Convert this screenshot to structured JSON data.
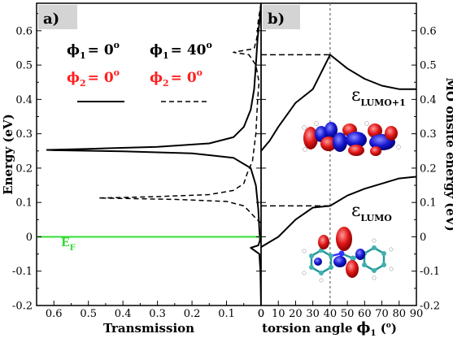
{
  "colors": {
    "black": "#000000",
    "red": "#ff2020",
    "fermi_line": "#33dd33",
    "panel_label_bg": "#d4d4d4",
    "dashed_vline": "#666666"
  },
  "chart_data": [
    {
      "type": "line",
      "panel_label": "a)",
      "xlabel": "Transmission",
      "ylabel": "Energy (eV)",
      "xlim": [
        0.65,
        0.0
      ],
      "ylim": [
        -0.2,
        0.68
      ],
      "x_ticks": [
        "0.6",
        "0.5",
        "0.4",
        "0.3",
        "0.2",
        "0.1",
        "0"
      ],
      "y_ticks": [
        "-0.2",
        "-0.1",
        "0",
        "0.1",
        "0.2",
        "0.3",
        "0.4",
        "0.5",
        "0.6"
      ],
      "fermi_label": "E",
      "fermi_sub": "F",
      "fermi_energy": 0.0,
      "legend": [
        {
          "line1": {
            "phi": "ϕ",
            "sub": "1",
            "eq": "= 0",
            "sup": "o"
          },
          "line2": {
            "phi": "ϕ",
            "sub": "2",
            "eq": "= 0",
            "sup": "o"
          },
          "style": "solid"
        },
        {
          "line1": {
            "phi": "ϕ",
            "sub": "1",
            "eq": "= 40",
            "sup": "o"
          },
          "line2": {
            "phi": "ϕ",
            "sub": "2",
            "eq": "= 0",
            "sup": "o"
          },
          "style": "dashed"
        }
      ],
      "series": [
        {
          "style": "solid",
          "points": [
            [
              0.0,
              -0.2
            ],
            [
              0.002,
              -0.1
            ],
            [
              0.005,
              -0.05
            ],
            [
              0.03,
              -0.032
            ],
            [
              0.008,
              -0.025
            ],
            [
              0.003,
              -0.01
            ],
            [
              0.005,
              0.02
            ],
            [
              0.008,
              0.08
            ],
            [
              0.015,
              0.15
            ],
            [
              0.03,
              0.2
            ],
            [
              0.08,
              0.23
            ],
            [
              0.2,
              0.243
            ],
            [
              0.4,
              0.249
            ],
            [
              0.6,
              0.252
            ],
            [
              0.62,
              0.253
            ],
            [
              0.5,
              0.256
            ],
            [
              0.3,
              0.262
            ],
            [
              0.15,
              0.272
            ],
            [
              0.08,
              0.29
            ],
            [
              0.05,
              0.32
            ],
            [
              0.03,
              0.37
            ],
            [
              0.02,
              0.43
            ],
            [
              0.015,
              0.5
            ],
            [
              0.01,
              0.58
            ],
            [
              0.004,
              0.63
            ],
            [
              0.0,
              0.68
            ]
          ]
        },
        {
          "style": "dashed",
          "points": [
            [
              0.0,
              0.04
            ],
            [
              0.012,
              0.05
            ],
            [
              0.03,
              0.07
            ],
            [
              0.05,
              0.09
            ],
            [
              0.1,
              0.103
            ],
            [
              0.25,
              0.109
            ],
            [
              0.47,
              0.113
            ],
            [
              0.3,
              0.117
            ],
            [
              0.15,
              0.123
            ],
            [
              0.08,
              0.135
            ],
            [
              0.05,
              0.155
            ],
            [
              0.04,
              0.185
            ],
            [
              0.025,
              0.22
            ],
            [
              0.015,
              0.3
            ],
            [
              0.01,
              0.4
            ],
            [
              0.006,
              0.45
            ],
            [
              0.015,
              0.5
            ],
            [
              0.035,
              0.53
            ],
            [
              0.08,
              0.537
            ],
            [
              0.02,
              0.548
            ],
            [
              0.012,
              0.58
            ],
            [
              0.008,
              0.63
            ],
            [
              0.0,
              0.68
            ]
          ]
        }
      ]
    },
    {
      "type": "line",
      "panel_label": "b)",
      "xlabel": "torsion angle",
      "xlabel_symbol": "ϕ",
      "xlabel_sub": "1",
      "xlabel_unit_pre": " (",
      "xlabel_unit_sup": "o",
      "xlabel_unit_post": ")",
      "ylabel": "MO onsite energy (eV)",
      "xlim": [
        0,
        90
      ],
      "ylim": [
        -0.2,
        0.68
      ],
      "x_ticks": [
        "0",
        "10",
        "20",
        "30",
        "40",
        "50",
        "60",
        "70",
        "80",
        "90"
      ],
      "y_ticks": [
        "-0.2",
        "-0.1",
        "0",
        "0.1",
        "0.2",
        "0.3",
        "0.4",
        "0.5",
        "0.6"
      ],
      "marker_angle": 40,
      "series_labels": [
        {
          "symbol": "ε",
          "sub": "LUMO+1"
        },
        {
          "symbol": "ε",
          "sub": "LUMO"
        }
      ],
      "series": [
        {
          "name": "LUMO+1",
          "points": [
            [
              0,
              0.25
            ],
            [
              5,
              0.28
            ],
            [
              10,
              0.32
            ],
            [
              20,
              0.39
            ],
            [
              30,
              0.43
            ],
            [
              40,
              0.53
            ],
            [
              50,
              0.49
            ],
            [
              60,
              0.46
            ],
            [
              70,
              0.44
            ],
            [
              80,
              0.43
            ],
            [
              90,
              0.43
            ]
          ]
        },
        {
          "name": "LUMO",
          "points": [
            [
              0,
              -0.03
            ],
            [
              10,
              0.0
            ],
            [
              20,
              0.05
            ],
            [
              30,
              0.085
            ],
            [
              40,
              0.09
            ],
            [
              50,
              0.12
            ],
            [
              60,
              0.14
            ],
            [
              70,
              0.155
            ],
            [
              80,
              0.17
            ],
            [
              90,
              0.175
            ]
          ]
        }
      ],
      "dashed_markers": [
        {
          "energy": 0.53,
          "from_x": 0
        },
        {
          "energy": 0.09,
          "from_x": 0
        }
      ]
    }
  ]
}
